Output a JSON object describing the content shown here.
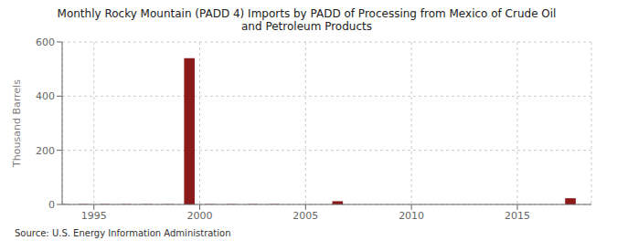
{
  "chart_data": {
    "type": "bar",
    "title": "Monthly Rocky Mountain (PADD 4) Imports by PADD of Processing from Mexico of Crude Oil\nand Petroleum Products",
    "ylabel": "Thousand Barrels",
    "source": "Source: U.S. Energy Information Administration",
    "x": [
      1993.5,
      1994.5,
      1995.5,
      1996.5,
      1997.5,
      1998.5,
      1999.5,
      2000.5,
      2001.5,
      2002.5,
      2003.5,
      2006.5,
      2017.5
    ],
    "values": [
      1,
      1,
      1,
      1,
      1,
      1,
      540,
      1,
      1,
      1,
      1,
      12,
      23
    ],
    "color": "#8B1A1A",
    "xlim": [
      1993.5,
      2018.5
    ],
    "ylim": [
      0,
      600
    ],
    "xticks": [
      1995,
      2000,
      2005,
      2010,
      2015
    ],
    "yticks": [
      0,
      200,
      400,
      600
    ],
    "grid": true
  }
}
